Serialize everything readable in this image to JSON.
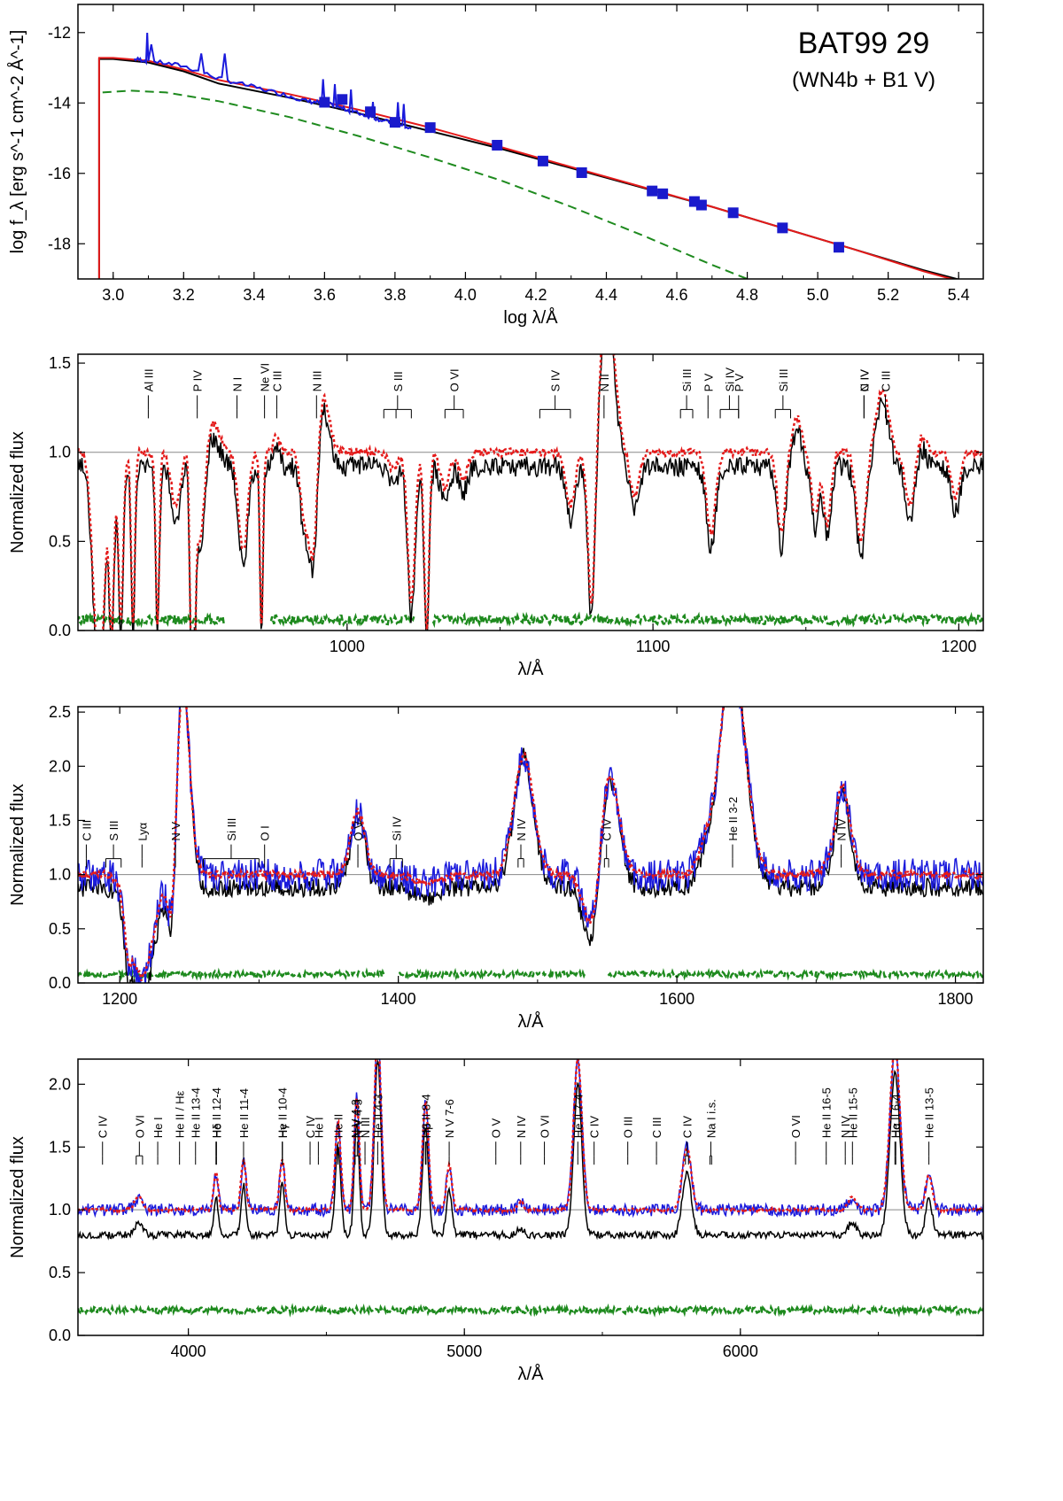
{
  "colors": {
    "observed": "#1a1adc",
    "model_composite": "#e41a1a",
    "model_wn": "#000000",
    "model_companion": "#1e8a1e",
    "photometry": "#1a1acc",
    "frame": "#000000"
  },
  "chart_data": [
    {
      "id": "sed",
      "type": "line",
      "title": "BAT99 29",
      "subtitle": "(WN4b + B1 V)",
      "xlabel": "log λ/Å",
      "ylabel": "log f_λ [erg s^-1 cm^-2 Å^-1]",
      "xlim": [
        2.9,
        5.47
      ],
      "ylim": [
        -19.0,
        -11.2
      ],
      "xticks": [
        3.0,
        3.2,
        3.4,
        3.6,
        3.8,
        4.0,
        4.2,
        4.4,
        4.6,
        4.8,
        5.0,
        5.2,
        5.4
      ],
      "xticklabels": [
        "3.0",
        "3.2",
        "3.4",
        "3.6",
        "3.8",
        "4.0",
        "4.2",
        "4.4",
        "4.6",
        "4.8",
        "5.0",
        "5.2",
        "5.4"
      ],
      "yticks": [
        -12,
        -14,
        -16,
        -18
      ],
      "yticklabels": [
        "-12",
        "-14",
        "-16",
        "-18"
      ],
      "series": [
        {
          "name": "companion",
          "style": "dashed",
          "x": [
            2.97,
            3.05,
            3.15,
            3.3,
            3.5,
            3.7,
            3.9,
            4.1,
            4.3,
            4.5,
            4.7,
            4.8
          ],
          "y": [
            -13.7,
            -13.65,
            -13.7,
            -13.95,
            -14.4,
            -14.95,
            -15.55,
            -16.2,
            -16.95,
            -17.75,
            -18.6,
            -19.0
          ]
        },
        {
          "name": "wn_model",
          "style": "solid",
          "x": [
            2.96,
            3.0,
            3.1,
            3.2,
            3.3,
            3.5,
            3.7,
            3.9,
            4.1,
            4.3,
            4.5,
            4.7,
            4.9,
            5.1,
            5.3,
            5.47
          ],
          "y": [
            -12.75,
            -12.75,
            -12.85,
            -13.1,
            -13.45,
            -13.85,
            -14.3,
            -14.8,
            -15.3,
            -15.85,
            -16.4,
            -16.95,
            -17.55,
            -18.15,
            -18.75,
            -19.2
          ]
        },
        {
          "name": "composite_model",
          "style": "solid",
          "x": [
            2.96,
            3.0,
            3.1,
            3.2,
            3.3,
            3.5,
            3.7,
            3.9,
            4.1,
            4.3,
            4.5,
            4.7,
            4.9,
            5.1,
            5.3,
            5.47
          ],
          "y": [
            -12.72,
            -12.72,
            -12.8,
            -13.05,
            -13.35,
            -13.75,
            -14.2,
            -14.7,
            -15.25,
            -15.82,
            -16.38,
            -16.95,
            -17.55,
            -18.15,
            -18.78,
            -19.25
          ]
        },
        {
          "name": "observed",
          "style": "solid",
          "x": [
            3.06,
            3.1,
            3.2,
            3.3,
            3.4,
            3.5,
            3.55,
            3.6,
            3.65,
            3.7,
            3.75,
            3.8,
            3.85
          ],
          "y": [
            -12.75,
            -12.8,
            -12.95,
            -13.3,
            -13.55,
            -13.8,
            -13.95,
            -14.0,
            -14.15,
            -14.3,
            -14.45,
            -14.6,
            -14.75
          ]
        }
      ],
      "photometry": {
        "x": [
          3.6,
          3.65,
          3.73,
          3.8,
          3.9,
          4.09,
          4.22,
          4.33,
          4.53,
          4.56,
          4.65,
          4.67,
          4.76,
          4.9,
          5.06
        ],
        "y": [
          -13.98,
          -13.9,
          -14.25,
          -14.55,
          -14.7,
          -15.2,
          -15.65,
          -15.98,
          -16.5,
          -16.58,
          -16.8,
          -16.9,
          -17.12,
          -17.55,
          -18.1
        ]
      }
    },
    {
      "id": "fuv",
      "type": "line",
      "xlabel": "λ/Å",
      "ylabel": "Normalized flux",
      "xlim": [
        912,
        1208
      ],
      "ylim": [
        0.0,
        1.55
      ],
      "xticks": [
        1000,
        1100,
        1200
      ],
      "xticklabels": [
        "1000",
        "1100",
        "1200"
      ],
      "yticks": [
        0.0,
        0.5,
        1.0,
        1.5
      ],
      "yticklabels": [
        "0.0",
        "0.5",
        "1.0",
        "1.5"
      ],
      "continuum": 1.0,
      "lines": [
        {
          "label": "Al III",
          "wl": [
            935
          ]
        },
        {
          "label": "P IV",
          "wl": [
            951
          ]
        },
        {
          "label": "N I",
          "wl": [
            964
          ]
        },
        {
          "label": "Ne VI",
          "wl": [
            973
          ]
        },
        {
          "label": "C III",
          "wl": [
            977
          ]
        },
        {
          "label": "N III",
          "wl": [
            990
          ]
        },
        {
          "label": "S III",
          "wl": [
            1012,
            1016,
            1021
          ]
        },
        {
          "label": "O VI",
          "wl": [
            1032,
            1038
          ]
        },
        {
          "label": "S IV",
          "wl": [
            1063,
            1073
          ]
        },
        {
          "label": "N II",
          "wl": [
            1084
          ]
        },
        {
          "label": "Si III",
          "wl": [
            1109,
            1113
          ]
        },
        {
          "label": "P V",
          "wl": [
            1118
          ]
        },
        {
          "label": "Si IV",
          "wl": [
            1122,
            1128
          ]
        },
        {
          "label": "P V",
          "wl": [
            1128
          ]
        },
        {
          "label": "Si III",
          "wl": [
            1140,
            1145
          ]
        },
        {
          "label": "C IV",
          "wl": [
            1169
          ]
        },
        {
          "label": "N IV",
          "wl": [
            1169
          ]
        },
        {
          "label": "C III",
          "wl": [
            1176
          ]
        }
      ],
      "features": [
        {
          "wl": 918,
          "depth": -0.9,
          "w": 1.5
        },
        {
          "wl": 920,
          "depth": -0.7,
          "w": 1.2
        },
        {
          "wl": 923,
          "depth": -1.0,
          "w": 0.8
        },
        {
          "wl": 926,
          "depth": -0.95,
          "w": 0.8
        },
        {
          "wl": 930,
          "depth": -0.98,
          "w": 0.6
        },
        {
          "wl": 938,
          "depth": -0.95,
          "w": 0.6
        },
        {
          "wl": 944,
          "depth": -0.3,
          "w": 1.5
        },
        {
          "wl": 949,
          "depth": -0.98,
          "w": 0.5
        },
        {
          "wl": 950,
          "depth": -0.98,
          "w": 0.5
        },
        {
          "wl": 952,
          "depth": -0.6,
          "w": 1.5
        },
        {
          "wl": 955,
          "depth": 0.18,
          "w": 3.0
        },
        {
          "wl": 966,
          "depth": -0.55,
          "w": 1.5
        },
        {
          "wl": 972,
          "depth": -0.98,
          "w": 0.5
        },
        {
          "wl": 977,
          "depth": 0.1,
          "w": 1.0
        },
        {
          "wl": 986,
          "depth": -0.35,
          "w": 1.3
        },
        {
          "wl": 989,
          "depth": -0.65,
          "w": 1.4
        },
        {
          "wl": 992,
          "depth": 0.35,
          "w": 2.0
        },
        {
          "wl": 1015,
          "depth": -0.1,
          "w": 1.5
        },
        {
          "wl": 1021,
          "depth": -0.85,
          "w": 1.2
        },
        {
          "wl": 1026,
          "depth": -1.0,
          "w": 0.8
        },
        {
          "wl": 1032,
          "depth": -0.2,
          "w": 1.5
        },
        {
          "wl": 1038,
          "depth": -0.15,
          "w": 1.3
        },
        {
          "wl": 1073,
          "depth": -0.3,
          "w": 1.5
        },
        {
          "wl": 1080,
          "depth": -0.95,
          "w": 1.2
        },
        {
          "wl": 1085,
          "depth": 0.8,
          "w": 2.5
        },
        {
          "wl": 1094,
          "depth": -0.25,
          "w": 1.5
        },
        {
          "wl": 1119,
          "depth": -0.45,
          "w": 1.5
        },
        {
          "wl": 1142,
          "depth": -0.45,
          "w": 1.3
        },
        {
          "wl": 1147,
          "depth": 0.2,
          "w": 1.5
        },
        {
          "wl": 1153,
          "depth": -0.35,
          "w": 1.2
        },
        {
          "wl": 1157,
          "depth": -0.4,
          "w": 1.2
        },
        {
          "wl": 1168,
          "depth": -0.5,
          "w": 1.5
        },
        {
          "wl": 1175,
          "depth": 0.35,
          "w": 2.0
        },
        {
          "wl": 1184,
          "depth": -0.3,
          "w": 1.5
        },
        {
          "wl": 1188,
          "depth": 0.1,
          "w": 1.3
        },
        {
          "wl": 1199,
          "depth": -0.25,
          "w": 1.5
        }
      ],
      "companion_level": 0.06,
      "companion_gaps": [
        [
          960,
          975
        ],
        [
          1022,
          1028
        ]
      ]
    },
    {
      "id": "uv",
      "type": "line",
      "xlabel": "λ/Å",
      "ylabel": "Normalized flux",
      "xlim": [
        1170,
        1820
      ],
      "ylim": [
        0.0,
        2.55
      ],
      "xticks": [
        1200,
        1400,
        1600,
        1800
      ],
      "xticklabels": [
        "1200",
        "1400",
        "1600",
        "1800"
      ],
      "yticks": [
        0.0,
        0.5,
        1.0,
        1.5,
        2.0,
        2.5
      ],
      "yticklabels": [
        "0.0",
        "0.5",
        "1.0",
        "1.5",
        "2.0",
        "2.5"
      ],
      "continuum": 1.0,
      "lines": [
        {
          "label": "C III",
          "wl": [
            1176
          ]
        },
        {
          "label": "S III",
          "wl": [
            1190,
            1201
          ]
        },
        {
          "label": "Lyα",
          "wl": [
            1216
          ]
        },
        {
          "label": "N V",
          "wl": [
            1240
          ]
        },
        {
          "label": "Si III",
          "wl": [
            1260,
            1300
          ]
        },
        {
          "label": "O I",
          "wl": [
            1304
          ]
        },
        {
          "label": "O V",
          "wl": [
            1371
          ]
        },
        {
          "label": "Si IV",
          "wl": [
            1394,
            1403
          ]
        },
        {
          "label": "N IV",
          "wl": [
            1486,
            1490
          ]
        },
        {
          "label": "C IV",
          "wl": [
            1548,
            1551
          ]
        },
        {
          "label": "He II 3-2",
          "wl": [
            1640
          ]
        },
        {
          "label": "N IV",
          "wl": [
            1718
          ]
        }
      ],
      "features": [
        {
          "wl": 1206,
          "depth": -0.35,
          "w": 2.5
        },
        {
          "wl": 1216,
          "depth": -0.95,
          "w": 8.0
        },
        {
          "wl": 1238,
          "depth": -0.85,
          "w": 3.0
        },
        {
          "wl": 1245,
          "depth": 1.8,
          "w": 5.0
        },
        {
          "wl": 1371,
          "depth": 0.6,
          "w": 5.0
        },
        {
          "wl": 1420,
          "depth": -0.08,
          "w": 10
        },
        {
          "wl": 1490,
          "depth": 1.1,
          "w": 7.0
        },
        {
          "wl": 1540,
          "depth": -0.65,
          "w": 6.0
        },
        {
          "wl": 1551,
          "depth": 1.0,
          "w": 7.0
        },
        {
          "wl": 1620,
          "depth": 0.2,
          "w": 5.0
        },
        {
          "wl": 1640,
          "depth": 2.0,
          "w": 9.0
        },
        {
          "wl": 1713,
          "depth": -0.2,
          "w": 3.0
        },
        {
          "wl": 1718,
          "depth": 0.85,
          "w": 6.0
        }
      ],
      "companion_level": 0.08,
      "companion_gaps": [
        [
          1390,
          1400
        ],
        [
          1535,
          1550
        ]
      ]
    },
    {
      "id": "optical",
      "type": "line",
      "xlabel": "λ/Å",
      "ylabel": "Normalized flux",
      "xlim": [
        3600,
        6880
      ],
      "ylim": [
        0.0,
        2.2
      ],
      "xticks": [
        4000,
        5000,
        6000
      ],
      "xticklabels": [
        "4000",
        "5000",
        "6000"
      ],
      "yticks": [
        0.0,
        0.5,
        1.0,
        1.5,
        2.0
      ],
      "yticklabels": [
        "0.0",
        "0.5",
        "1.0",
        "1.5",
        "2.0"
      ],
      "continuum": 1.0,
      "lines": [
        {
          "label": "C IV",
          "wl": [
            3689
          ]
        },
        {
          "label": "O VI",
          "wl": [
            3811,
            3834
          ]
        },
        {
          "label": "He I",
          "wl": [
            3889
          ]
        },
        {
          "label": "He II / Hε",
          "wl": [
            3968
          ]
        },
        {
          "label": "He II 13-4",
          "wl": [
            4026
          ]
        },
        {
          "label": "He II 12-4",
          "wl": [
            4100
          ]
        },
        {
          "label": "Hδ",
          "wl": [
            4102
          ]
        },
        {
          "label": "He II 11-4",
          "wl": [
            4200
          ]
        },
        {
          "label": "He II 10-4",
          "wl": [
            4340
          ]
        },
        {
          "label": "Hγ",
          "wl": [
            4341
          ]
        },
        {
          "label": "He I",
          "wl": [
            4471
          ]
        },
        {
          "label": "C IV",
          "wl": [
            4441
          ]
        },
        {
          "label": "He II",
          "wl": [
            4542
          ]
        },
        {
          "label": "N V 4-3",
          "wl": [
            4604,
            4620
          ]
        },
        {
          "label": "N V 4-3",
          "wl": [
            4604
          ]
        },
        {
          "label": "N III",
          "wl": [
            4640
          ]
        },
        {
          "label": "He II 4-3",
          "wl": [
            4686
          ]
        },
        {
          "label": "He II 8-4",
          "wl": [
            4859
          ]
        },
        {
          "label": "Hβ",
          "wl": [
            4861
          ]
        },
        {
          "label": "N V 7-6",
          "wl": [
            4945
          ]
        },
        {
          "label": "O V",
          "wl": [
            5114
          ]
        },
        {
          "label": "N IV",
          "wl": [
            5204
          ]
        },
        {
          "label": "O VI",
          "wl": [
            5290
          ]
        },
        {
          "label": "He II 7-4",
          "wl": [
            5411
          ]
        },
        {
          "label": "C IV",
          "wl": [
            5470
          ]
        },
        {
          "label": "O III",
          "wl": [
            5592
          ]
        },
        {
          "label": "C III",
          "wl": [
            5696
          ]
        },
        {
          "label": "C IV",
          "wl": [
            5801,
            5812
          ]
        },
        {
          "label": "Na I i.s.",
          "wl": [
            5890,
            5896
          ]
        },
        {
          "label": "O VI",
          "wl": [
            6200
          ]
        },
        {
          "label": "He II 16-5",
          "wl": [
            6311
          ]
        },
        {
          "label": "N IV",
          "wl": [
            6380
          ]
        },
        {
          "label": "He II 15-5",
          "wl": [
            6406
          ]
        },
        {
          "label": "He II 6-4",
          "wl": [
            6560
          ]
        },
        {
          "label": "Hα",
          "wl": [
            6563
          ]
        },
        {
          "label": "He II 13-5",
          "wl": [
            6683
          ]
        }
      ],
      "features": [
        {
          "wl": 3820,
          "depth": 0.1,
          "w": 15
        },
        {
          "wl": 4100,
          "depth": 0.3,
          "w": 8
        },
        {
          "wl": 4200,
          "depth": 0.4,
          "w": 9
        },
        {
          "wl": 4340,
          "depth": 0.4,
          "w": 9
        },
        {
          "wl": 4542,
          "depth": 0.7,
          "w": 10
        },
        {
          "wl": 4610,
          "depth": 0.9,
          "w": 9
        },
        {
          "wl": 4686,
          "depth": 1.4,
          "w": 12
        },
        {
          "wl": 4859,
          "depth": 0.85,
          "w": 11
        },
        {
          "wl": 4945,
          "depth": 0.35,
          "w": 10
        },
        {
          "wl": 5204,
          "depth": 0.06,
          "w": 10
        },
        {
          "wl": 5411,
          "depth": 1.2,
          "w": 15
        },
        {
          "wl": 5806,
          "depth": 0.5,
          "w": 16
        },
        {
          "wl": 6406,
          "depth": 0.1,
          "w": 15
        },
        {
          "wl": 6560,
          "depth": 1.3,
          "w": 18
        },
        {
          "wl": 6683,
          "depth": 0.28,
          "w": 12
        }
      ],
      "companion_level": 0.2,
      "companion_gaps": []
    }
  ]
}
